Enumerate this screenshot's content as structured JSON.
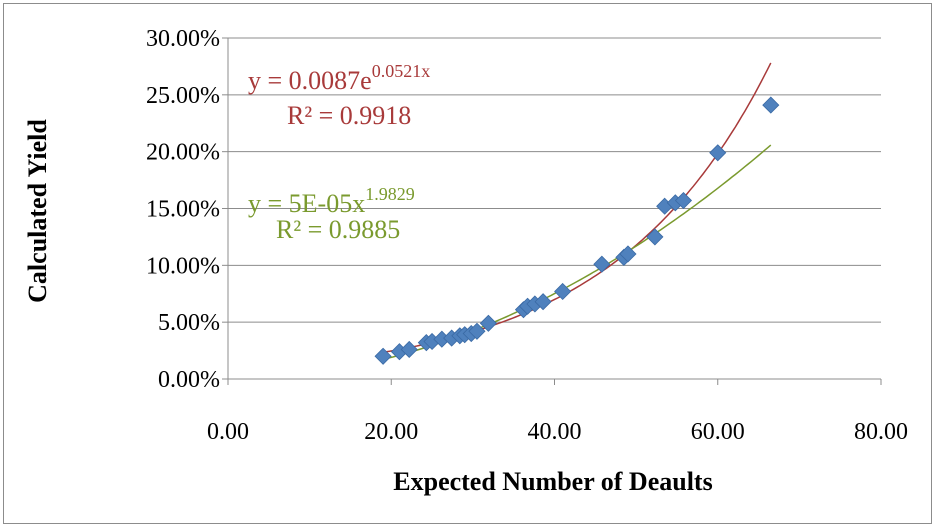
{
  "chart_data": {
    "type": "scatter",
    "xlabel": "Expected Number of Deaults",
    "ylabel": "Calculated Yield",
    "xlim": [
      0,
      80
    ],
    "ylim": [
      0,
      0.3
    ],
    "x_ticks": [
      "0.00",
      "20.00",
      "40.00",
      "60.00",
      "80.00"
    ],
    "y_ticks": [
      "0.00%",
      "5.00%",
      "10.00%",
      "15.00%",
      "20.00%",
      "25.00%",
      "30.00%"
    ],
    "grid": "horizontal",
    "marker_color": "#4f81bd",
    "series": [
      {
        "points": [
          [
            19.0,
            0.02
          ],
          [
            21.0,
            0.024
          ],
          [
            22.2,
            0.026
          ],
          [
            24.3,
            0.032
          ],
          [
            25.0,
            0.033
          ],
          [
            26.2,
            0.035
          ],
          [
            27.4,
            0.036
          ],
          [
            28.4,
            0.038
          ],
          [
            29.0,
            0.039
          ],
          [
            29.8,
            0.04
          ],
          [
            30.5,
            0.042
          ],
          [
            31.9,
            0.049
          ],
          [
            36.2,
            0.061
          ],
          [
            36.7,
            0.064
          ],
          [
            37.6,
            0.066
          ],
          [
            38.6,
            0.068
          ],
          [
            41.0,
            0.077
          ],
          [
            45.8,
            0.101
          ],
          [
            48.5,
            0.107
          ],
          [
            49.0,
            0.11
          ],
          [
            52.3,
            0.125
          ],
          [
            53.5,
            0.152
          ],
          [
            54.8,
            0.155
          ],
          [
            55.8,
            0.157
          ],
          [
            60.0,
            0.199
          ],
          [
            66.5,
            0.241
          ]
        ]
      }
    ],
    "trendlines": [
      {
        "kind": "exponential",
        "a": 0.0087,
        "b": 0.0521,
        "x_range": [
          19.0,
          66.5
        ],
        "color": "#a83a3a",
        "equation": "y = 0.0087e",
        "exponent": "0.0521x",
        "r2": "R² = 0.9918"
      },
      {
        "kind": "power",
        "a": 5e-05,
        "b": 1.9829,
        "x_range": [
          19.0,
          66.5
        ],
        "color": "#7a9a2e",
        "equation": "y = 5E-05x",
        "exponent": "1.9829",
        "r2": "R² = 0.9885"
      }
    ]
  }
}
